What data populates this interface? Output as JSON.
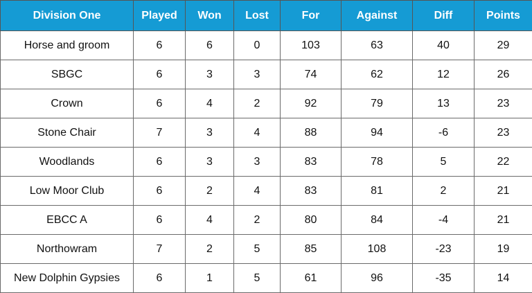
{
  "table": {
    "headers": [
      "Division One",
      "Played",
      "Won",
      "Lost",
      "For",
      "Against",
      "Diff",
      "Points"
    ],
    "rows": [
      [
        "Horse and groom",
        "6",
        "6",
        "0",
        "103",
        "63",
        "40",
        "29"
      ],
      [
        "SBGC",
        "6",
        "3",
        "3",
        "74",
        "62",
        "12",
        "26"
      ],
      [
        "Crown",
        "6",
        "4",
        "2",
        "92",
        "79",
        "13",
        "23"
      ],
      [
        "Stone Chair",
        "7",
        "3",
        "4",
        "88",
        "94",
        "-6",
        "23"
      ],
      [
        "Woodlands",
        "6",
        "3",
        "3",
        "83",
        "78",
        "5",
        "22"
      ],
      [
        "Low Moor Club",
        "6",
        "2",
        "4",
        "83",
        "81",
        "2",
        "21"
      ],
      [
        "EBCC A",
        "6",
        "4",
        "2",
        "80",
        "84",
        "-4",
        "21"
      ],
      [
        "Northowram",
        "7",
        "2",
        "5",
        "85",
        "108",
        "-23",
        "19"
      ],
      [
        "New Dolphin Gypsies",
        "6",
        "1",
        "5",
        "61",
        "96",
        "-35",
        "14"
      ]
    ],
    "header_color": "#159bd4"
  }
}
